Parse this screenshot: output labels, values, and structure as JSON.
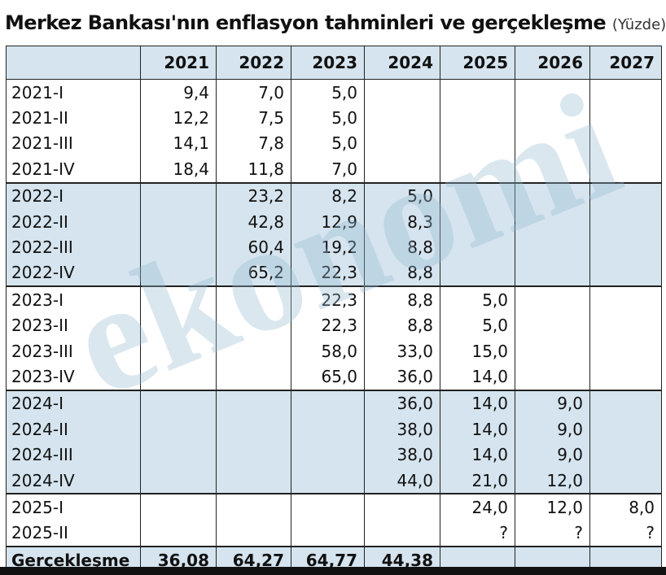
{
  "header": {
    "title": "Merkez Bankası'nın enflasyon tahminleri ve gerçekleşme",
    "unit": "(Yüzde)"
  },
  "watermark": "ekonomi",
  "table": {
    "columns": [
      "2021",
      "2022",
      "2023",
      "2024",
      "2025",
      "2026",
      "2027"
    ],
    "rows": [
      {
        "label": "2021-I",
        "cells": [
          "9,4",
          "7,0",
          "5,0",
          null,
          null,
          null,
          null
        ]
      },
      {
        "label": "2021-II",
        "cells": [
          "12,2",
          "7,5",
          "5,0",
          null,
          null,
          null,
          null
        ]
      },
      {
        "label": "2021-III",
        "cells": [
          "14,1",
          "7,8",
          "5,0",
          null,
          null,
          null,
          null
        ]
      },
      {
        "label": "2021-IV",
        "cells": [
          "18,4",
          "11,8",
          "7,0",
          null,
          null,
          null,
          null
        ]
      },
      {
        "label": "2022-I",
        "cells": [
          null,
          "23,2",
          "8,2",
          "5,0",
          null,
          null,
          null
        ]
      },
      {
        "label": "2022-II",
        "cells": [
          null,
          "42,8",
          "12,9",
          "8,3",
          null,
          null,
          null
        ]
      },
      {
        "label": "2022-III",
        "cells": [
          null,
          "60,4",
          "19,2",
          "8,8",
          null,
          null,
          null
        ]
      },
      {
        "label": "2022-IV",
        "cells": [
          null,
          "65,2",
          "22,3",
          "8,8",
          null,
          null,
          null
        ]
      },
      {
        "label": "2023-I",
        "cells": [
          null,
          null,
          "22,3",
          "8,8",
          "5,0",
          null,
          null
        ]
      },
      {
        "label": "2023-II",
        "cells": [
          null,
          null,
          "22,3",
          "8,8",
          "5,0",
          null,
          null
        ]
      },
      {
        "label": "2023-III",
        "cells": [
          null,
          null,
          "58,0",
          "33,0",
          "15,0",
          null,
          null
        ]
      },
      {
        "label": "2023-IV",
        "cells": [
          null,
          null,
          "65,0",
          "36,0",
          "14,0",
          null,
          null
        ]
      },
      {
        "label": "2024-I",
        "cells": [
          null,
          null,
          null,
          "36,0",
          "14,0",
          "9,0",
          null
        ]
      },
      {
        "label": "2024-II",
        "cells": [
          null,
          null,
          null,
          "38,0",
          "14,0",
          "9,0",
          null
        ]
      },
      {
        "label": "2024-III",
        "cells": [
          null,
          null,
          null,
          "38,0",
          "14,0",
          "9,0",
          null
        ]
      },
      {
        "label": "2024-IV",
        "cells": [
          null,
          null,
          null,
          "44,0",
          "21,0",
          "12,0",
          null
        ]
      },
      {
        "label": "2025-I",
        "cells": [
          null,
          null,
          null,
          null,
          "24,0",
          "12,0",
          "8,0"
        ]
      },
      {
        "label": "2025-II",
        "cells": [
          null,
          null,
          null,
          null,
          "?",
          "?",
          "?"
        ]
      },
      {
        "label": "Gerçekleşme",
        "cells": [
          "36,08",
          "64,27",
          "64,77",
          "44,38",
          null,
          null,
          null
        ]
      }
    ]
  }
}
